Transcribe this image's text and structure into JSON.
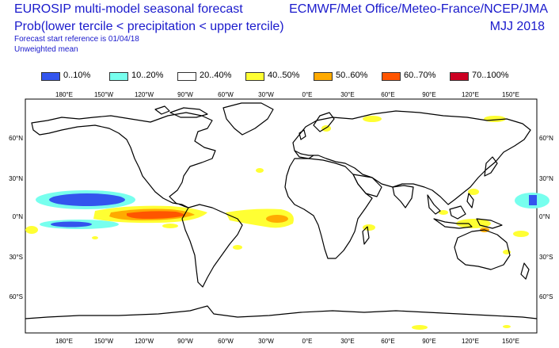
{
  "header": {
    "title": "EUROSIP multi-model seasonal forecast",
    "subtitle": "Prob(lower tercile < precipitation < upper tercile)",
    "forecast_reference": "Forecast start reference is 01/04/18",
    "weighting": "Unweighted mean",
    "centres": "ECMWF/Met Office/Meteo-France/NCEP/JMA",
    "season": "MJJ 2018"
  },
  "legend": [
    {
      "label": "0..10%",
      "color": "#3355ee"
    },
    {
      "label": "10..20%",
      "color": "#77ffee"
    },
    {
      "label": "20..40%",
      "color": "#ffffff"
    },
    {
      "label": "40..50%",
      "color": "#ffff33"
    },
    {
      "label": "50..60%",
      "color": "#ffaa00"
    },
    {
      "label": "60..70%",
      "color": "#ff5500"
    },
    {
      "label": "70..100%",
      "color": "#cc0022"
    }
  ],
  "axes": {
    "lon_labels": [
      "180°E",
      "150°W",
      "120°W",
      "90°W",
      "60°W",
      "30°W",
      "0°E",
      "30°E",
      "60°E",
      "90°E",
      "120°E",
      "150°E"
    ],
    "lat_labels_left": [
      "60°N",
      "30°N",
      "0°N",
      "30°S",
      "60°S"
    ],
    "lat_labels_right": [
      "60°N",
      "30°N",
      "0°N",
      "30°S",
      "60°S"
    ]
  }
}
